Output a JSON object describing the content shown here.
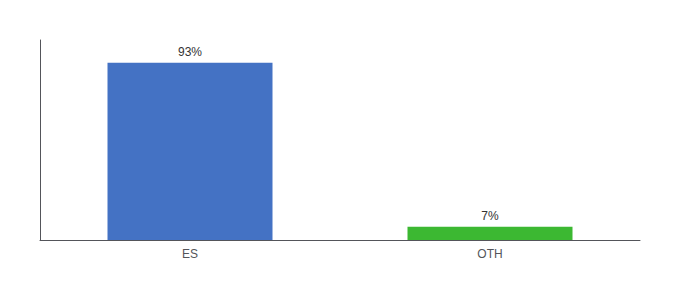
{
  "chart_data": {
    "type": "bar",
    "categories": [
      "ES",
      "OTH"
    ],
    "values": [
      93,
      7
    ],
    "value_labels": [
      "93%",
      "7%"
    ],
    "colors": [
      "#4472c4",
      "#3cb832"
    ],
    "ylim": [
      0,
      105
    ],
    "grid": false,
    "data_labels": true,
    "tick_labels": "x"
  }
}
